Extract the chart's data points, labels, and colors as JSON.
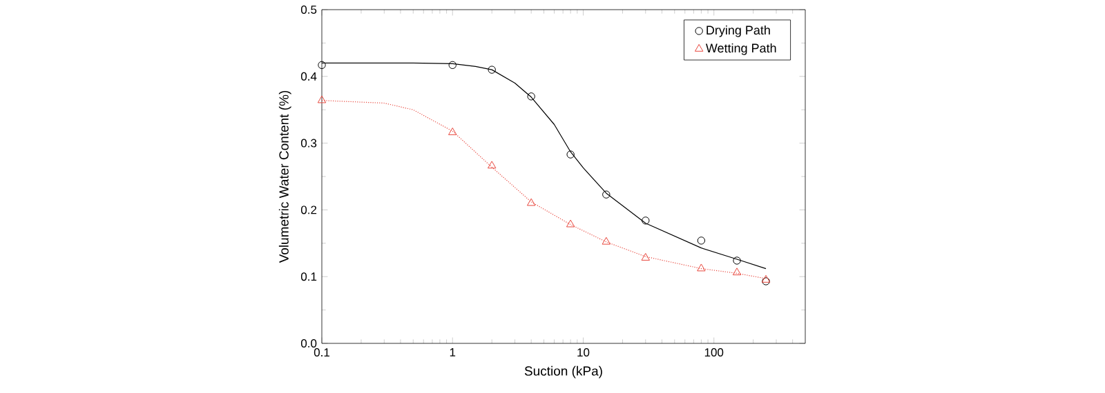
{
  "chart_data": {
    "type": "scatter",
    "xlabel": "Suction (kPa)",
    "ylabel": "Volumetric Water Content (%)",
    "log": "x",
    "xlim": [
      0.1,
      500
    ],
    "ylim": [
      0,
      0.5
    ],
    "xticks": [
      0.1,
      1,
      10,
      100
    ],
    "yticks": [
      {
        "value": 0,
        "label": "0.0"
      },
      0.1,
      0.2,
      0.3,
      0.4,
      0.5
    ],
    "legend": "top right",
    "grid": false,
    "series": [
      {
        "name": "Drying Path",
        "marker": "circle",
        "color": "#000000",
        "x": [
          0.1,
          1,
          2,
          4,
          8,
          15,
          30,
          80,
          150,
          250
        ],
        "values": [
          0.417,
          0.417,
          0.41,
          0.37,
          0.283,
          0.223,
          0.184,
          0.154,
          0.124,
          0.093
        ]
      },
      {
        "name": "Wetting Path",
        "marker": "triangle",
        "color": "#e8463c",
        "x": [
          0.1,
          1,
          2,
          4,
          8,
          15,
          30,
          80,
          150,
          250
        ],
        "values": [
          0.364,
          0.316,
          0.266,
          0.21,
          0.178,
          0.152,
          0.128,
          0.112,
          0.106,
          0.095
        ]
      },
      {
        "type": "line",
        "line_style": "solid",
        "color": "#000000",
        "x": [
          0.1,
          0.5,
          1,
          1.5,
          2,
          3,
          4,
          6,
          8,
          10,
          15,
          30,
          80,
          150,
          250
        ],
        "values": [
          0.42,
          0.42,
          0.419,
          0.415,
          0.41,
          0.39,
          0.369,
          0.328,
          0.287,
          0.263,
          0.225,
          0.18,
          0.143,
          0.126,
          0.112
        ]
      },
      {
        "type": "line",
        "line_style": "dotted",
        "color": "#e8463c",
        "x": [
          0.1,
          0.3,
          0.5,
          1,
          2,
          4,
          8,
          15,
          30,
          80,
          150,
          250
        ],
        "values": [
          0.364,
          0.36,
          0.35,
          0.318,
          0.264,
          0.212,
          0.178,
          0.152,
          0.13,
          0.112,
          0.105,
          0.097
        ]
      }
    ]
  }
}
